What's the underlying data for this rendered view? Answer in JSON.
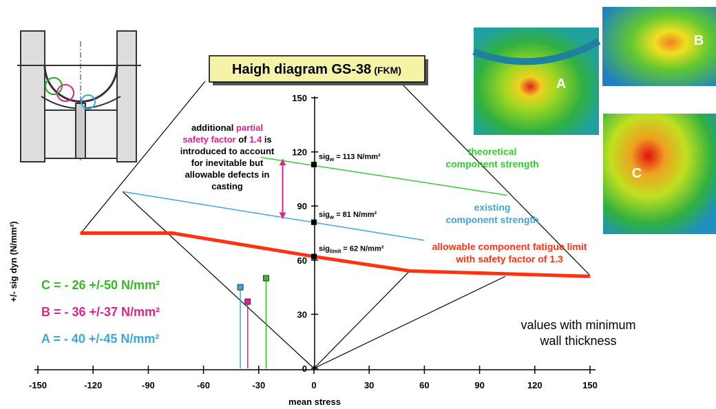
{
  "chart_data": {
    "type": "line",
    "title": "Haigh diagram GS-38",
    "title_suffix": "(FKM)",
    "x_label": "mean stress",
    "y_label": "+/- sig dyn (N/mm²)",
    "xlim": [
      -150,
      150
    ],
    "xticks": [
      -150,
      -120,
      -90,
      -60,
      -30,
      0,
      30,
      60,
      90,
      120,
      150
    ],
    "ylim": [
      0,
      150
    ],
    "yticks": [
      0,
      30,
      60,
      90,
      120,
      150
    ],
    "series": [
      {
        "label": [
          "theoretical",
          "component strength"
        ],
        "color": "#33cc33",
        "width": 1.5,
        "x": [
          -29,
          105
        ],
        "values": [
          117,
          96
        ]
      },
      {
        "label": [
          "existing",
          "component strength"
        ],
        "color": "#3ba7e0",
        "width": 1.5,
        "x": [
          -104,
          60
        ],
        "values": [
          98,
          71
        ]
      },
      {
        "label": [
          "allowable component fatigue limit",
          "with safety factor of 1.3"
        ],
        "color": "#ff3311",
        "width": 5,
        "x": [
          -127,
          -77,
          0,
          52,
          150
        ],
        "values": [
          75,
          75,
          62,
          54,
          51
        ]
      }
    ],
    "construction_lines": {
      "color": "#000000",
      "lines": [
        {
          "x": [
            0,
            -104
          ],
          "values": [
            0,
            98
          ]
        },
        {
          "x": [
            0,
            52
          ],
          "values": [
            0,
            54
          ]
        },
        {
          "x": [
            0,
            104
          ],
          "values": [
            0,
            51
          ]
        }
      ]
    },
    "reference_points": {
      "x": [
        0,
        0,
        0
      ],
      "values": [
        113,
        81,
        62
      ],
      "labels": [
        {
          "prefix": "sig",
          "sub": "w",
          "text": " = 113 N/mm²"
        },
        {
          "prefix": "sig",
          "sub": "w",
          "text": " = 81 N/mm²"
        },
        {
          "prefix": "sig",
          "sub": "limit",
          "text": " = 62 N/mm²"
        }
      ]
    },
    "safety_arrow": {
      "color": "#e0228a",
      "x": -17,
      "values": [
        116,
        83
      ]
    },
    "annotation": [
      [
        {
          "text": "additional "
        },
        {
          "text": "partial",
          "color": "#e0228a"
        }
      ],
      [
        {
          "text": "safety factor",
          "color": "#e0228a"
        },
        {
          "text": " of "
        },
        {
          "text": "1.4",
          "color": "#e0228a"
        },
        {
          "text": " is"
        }
      ],
      [
        {
          "text": "introduced to account"
        }
      ],
      [
        {
          "text": "for inevitable but"
        }
      ],
      [
        {
          "text": "allowable defects in"
        }
      ],
      [
        {
          "text": "casting"
        }
      ]
    ],
    "load_cases": [
      {
        "label": "C = - 26 +/-50 N/mm²",
        "color": "#33bb22",
        "x": -26,
        "value": 50
      },
      {
        "label": "B = - 36 +/-37 N/mm²",
        "color": "#e0228a",
        "x": -36,
        "value": 37
      },
      {
        "label": "A = - 40 +/-45 N/mm²",
        "color": "#3ba7e0",
        "x": -40,
        "value": 45
      }
    ],
    "note": [
      "values with minimum",
      "wall thickness"
    ],
    "image_labels": [
      "A",
      "B",
      "C"
    ]
  }
}
